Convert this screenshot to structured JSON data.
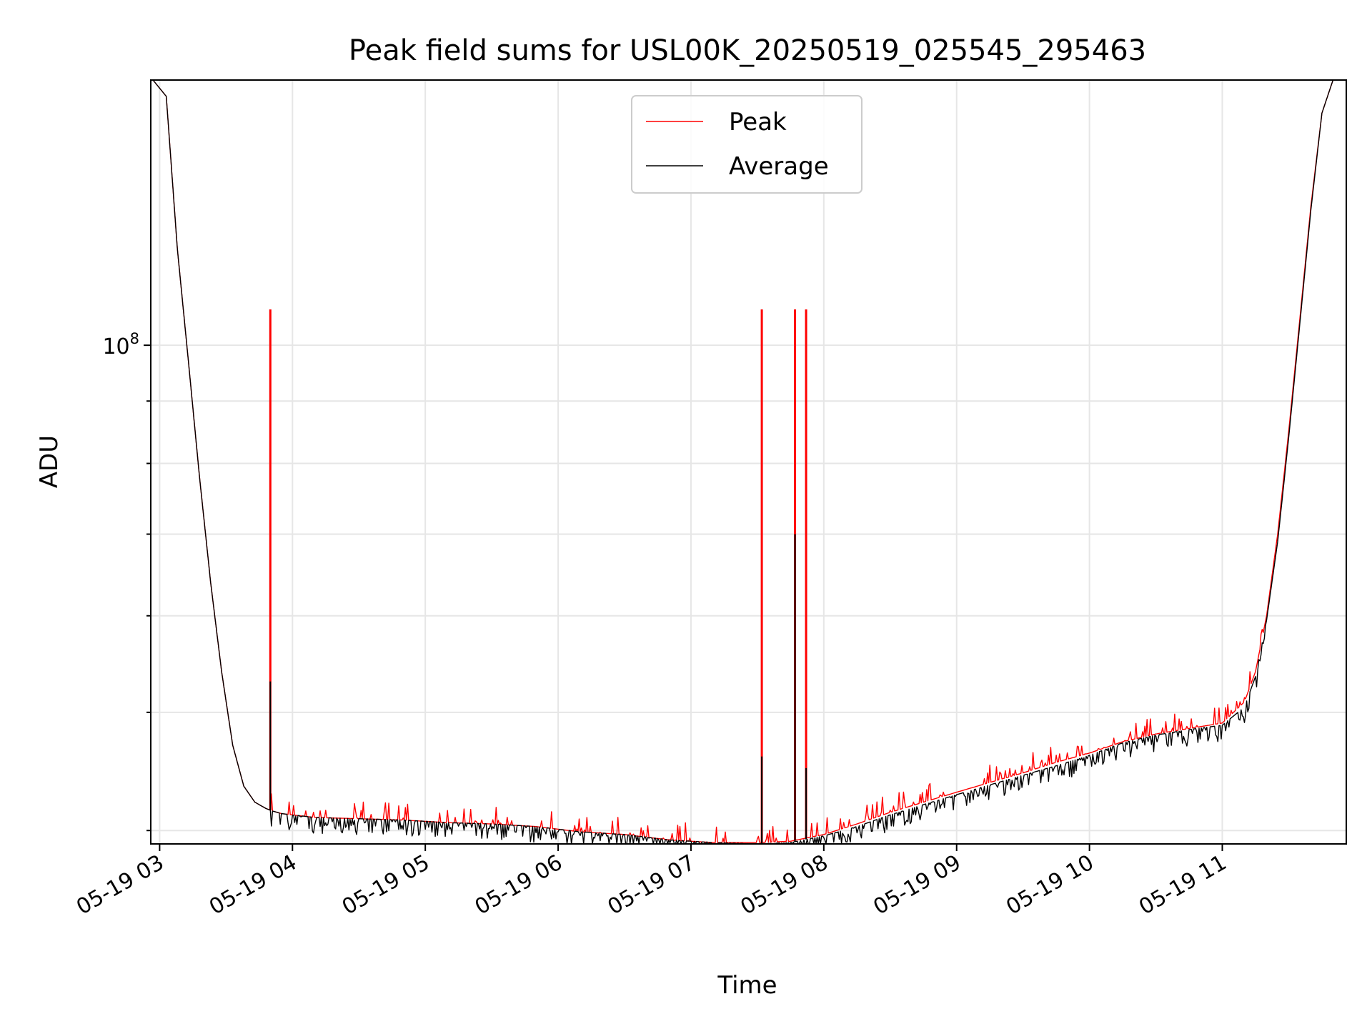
{
  "chart_data": {
    "type": "line",
    "title": "Peak field sums for USL00K_20250519_025545_295463",
    "xlabel": "Time",
    "ylabel": "ADU",
    "x_ticks": [
      "05-19 03",
      "05-19 04",
      "05-19 05",
      "05-19 06",
      "05-19 07",
      "05-19 08",
      "05-19 09",
      "05-19 10",
      "05-19 11"
    ],
    "y_ticks": [
      {
        "base": "10",
        "exp": "8",
        "value": 100000000
      }
    ],
    "y_scale": "log",
    "xlim": [
      "2025-05-19 02:56",
      "2025-05-19 11:56"
    ],
    "ylim": [
      39000000,
      165000000
    ],
    "grid": true,
    "legend": {
      "position": "upper center",
      "entries": [
        "Peak",
        "Average"
      ]
    },
    "series": [
      {
        "name": "Peak",
        "color": "#ff0000",
        "x": [
          "02:57",
          "03:03",
          "03:08",
          "03:13",
          "03:18",
          "03:23",
          "03:28",
          "03:33",
          "03:38",
          "03:43",
          "03:48",
          "03:51",
          "03:55",
          "04:10",
          "04:30",
          "04:50",
          "05:10",
          "05:30",
          "05:50",
          "06:10",
          "06:30",
          "06:50",
          "07:10",
          "07:30",
          "07:45",
          "08:00",
          "08:15",
          "08:30",
          "08:45",
          "09:00",
          "09:15",
          "09:30",
          "09:45",
          "10:00",
          "10:15",
          "10:30",
          "10:45",
          "11:00",
          "11:10",
          "11:15",
          "11:20",
          "11:25",
          "11:30",
          "11:35",
          "11:40",
          "11:45",
          "11:50"
        ],
        "values": [
          165000000,
          160000000,
          120000000,
          97000000,
          78000000,
          64000000,
          54000000,
          47000000,
          43500000,
          42200000,
          41700000,
          41500000,
          41300000,
          41000000,
          40900000,
          40800000,
          40600000,
          40500000,
          40300000,
          39900000,
          39700000,
          39300000,
          39100000,
          39100000,
          39200000,
          39700000,
          40500000,
          41400000,
          42200000,
          43000000,
          43800000,
          44600000,
          45500000,
          46300000,
          47300000,
          48000000,
          48500000,
          49000000,
          51000000,
          54000000,
          60000000,
          70000000,
          85000000,
          105000000,
          130000000,
          155000000,
          165000000
        ],
        "spikes": [
          {
            "x": "03:50",
            "value": 107000000
          },
          {
            "x": "07:32",
            "value": 107000000
          },
          {
            "x": "07:47",
            "value": 107000000
          },
          {
            "x": "07:52",
            "value": 107000000
          }
        ]
      },
      {
        "name": "Average",
        "color": "#000000",
        "x": [
          "02:57",
          "03:03",
          "03:08",
          "03:13",
          "03:18",
          "03:23",
          "03:28",
          "03:33",
          "03:38",
          "03:43",
          "03:48",
          "03:51",
          "03:55",
          "04:10",
          "04:30",
          "04:50",
          "05:10",
          "05:30",
          "05:50",
          "06:10",
          "06:30",
          "06:50",
          "07:10",
          "07:30",
          "07:45",
          "08:00",
          "08:15",
          "08:30",
          "08:45",
          "09:00",
          "09:15",
          "09:30",
          "09:45",
          "10:00",
          "10:15",
          "10:30",
          "10:45",
          "11:00",
          "11:10",
          "11:15",
          "11:20",
          "11:25",
          "11:30",
          "11:35",
          "11:40",
          "11:45",
          "11:50"
        ],
        "values": [
          165000000,
          160000000,
          120000000,
          97000000,
          78000000,
          64000000,
          54000000,
          47000000,
          43500000,
          42200000,
          41700000,
          41500000,
          41300000,
          41000000,
          40900000,
          40800000,
          40600000,
          40500000,
          40300000,
          39900000,
          39700000,
          39300000,
          39100000,
          39000000,
          39100000,
          39600000,
          40300000,
          41200000,
          42000000,
          42800000,
          43600000,
          44400000,
          45200000,
          46100000,
          47200000,
          47900000,
          48400000,
          48800000,
          50500000,
          53500000,
          59500000,
          69000000,
          84000000,
          104000000,
          129000000,
          155000000,
          165000000
        ],
        "spikes": [
          {
            "x": "03:50",
            "value": 53000000
          },
          {
            "x": "07:32",
            "value": 46000000
          },
          {
            "x": "07:47",
            "value": 70000000
          },
          {
            "x": "07:52",
            "value": 45000000
          }
        ]
      }
    ]
  }
}
